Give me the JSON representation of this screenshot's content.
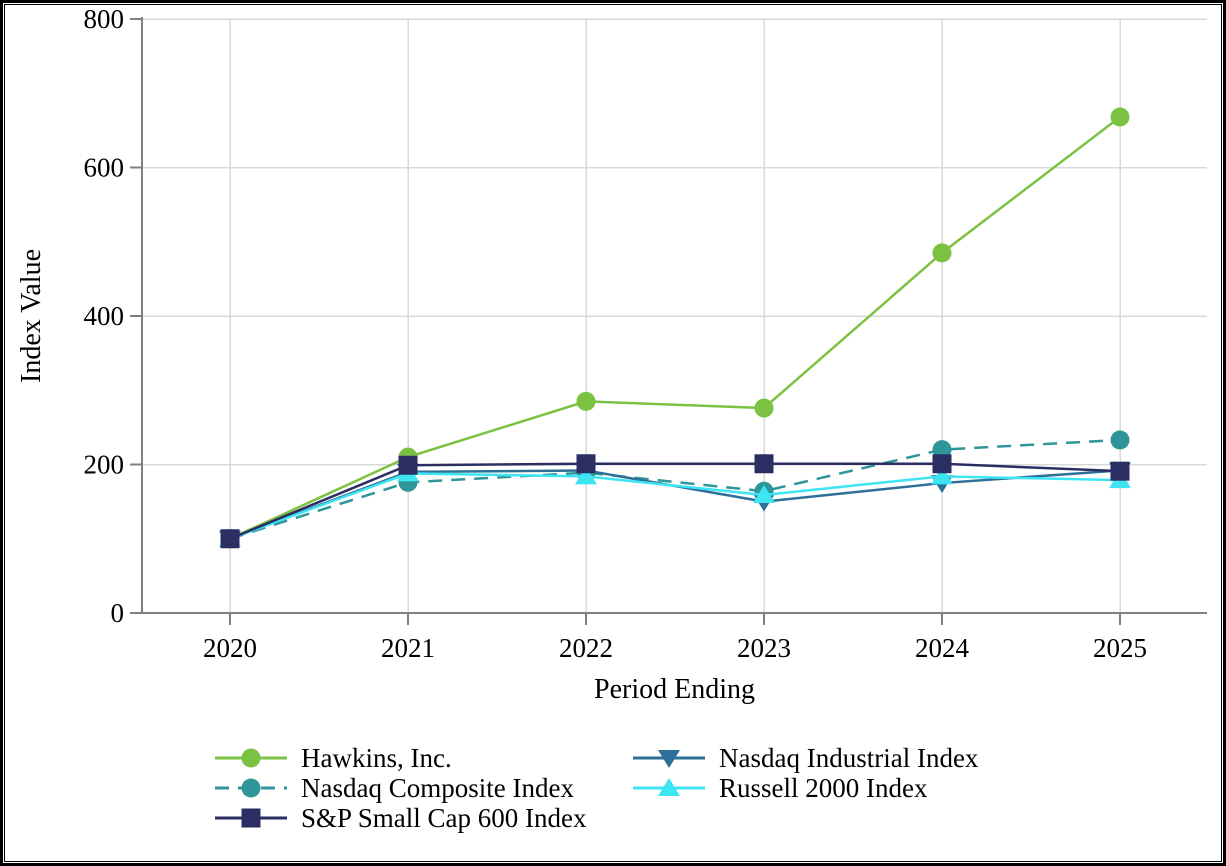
{
  "page": {
    "background": "#ffffff",
    "border_color": "#000000"
  },
  "chart_data": {
    "type": "line",
    "title": "",
    "xlabel": "Period Ending",
    "ylabel": "Index Value",
    "x_labels": [
      "2020",
      "2021",
      "2022",
      "2023",
      "2024",
      "2025"
    ],
    "yticks": [
      0,
      200,
      400,
      600,
      800
    ],
    "ytick_labels": [
      "0",
      "200",
      "400",
      "600",
      "800"
    ],
    "ylim": [
      0,
      800
    ],
    "grid": true,
    "grid_color": "#d9d9d9",
    "axis_color": "#808080",
    "text_color": "#000000",
    "legend_position": "bottom",
    "series": [
      {
        "name": "Hawkins, Inc.",
        "color": "#7cc242",
        "line_style": "solid",
        "marker": "circle",
        "values": [
          100,
          210,
          285,
          276,
          485,
          668
        ]
      },
      {
        "name": "Nasdaq Composite Index",
        "color": "#2e9698",
        "line_style": "dashed",
        "marker": "circle",
        "values": [
          100,
          176,
          189,
          164,
          220,
          233
        ]
      },
      {
        "name": "S&P Small Cap 600 Index",
        "color": "#2b2e63",
        "line_style": "solid",
        "marker": "square",
        "values": [
          100,
          199,
          201,
          201,
          201,
          191
        ]
      },
      {
        "name": "Nasdaq Industrial Index",
        "color": "#2d6f96",
        "line_style": "solid",
        "marker": "triangle-down",
        "values": [
          100,
          190,
          192,
          150,
          175,
          192
        ]
      },
      {
        "name": "Russell 2000 Index",
        "color": "#3de5f2",
        "line_style": "solid",
        "marker": "triangle-up",
        "values": [
          100,
          188,
          184,
          159,
          184,
          179
        ]
      }
    ],
    "draw_order": [
      0,
      1,
      3,
      4,
      2
    ],
    "legend_columns": [
      [
        0,
        1,
        2
      ],
      [
        3,
        4
      ]
    ]
  }
}
